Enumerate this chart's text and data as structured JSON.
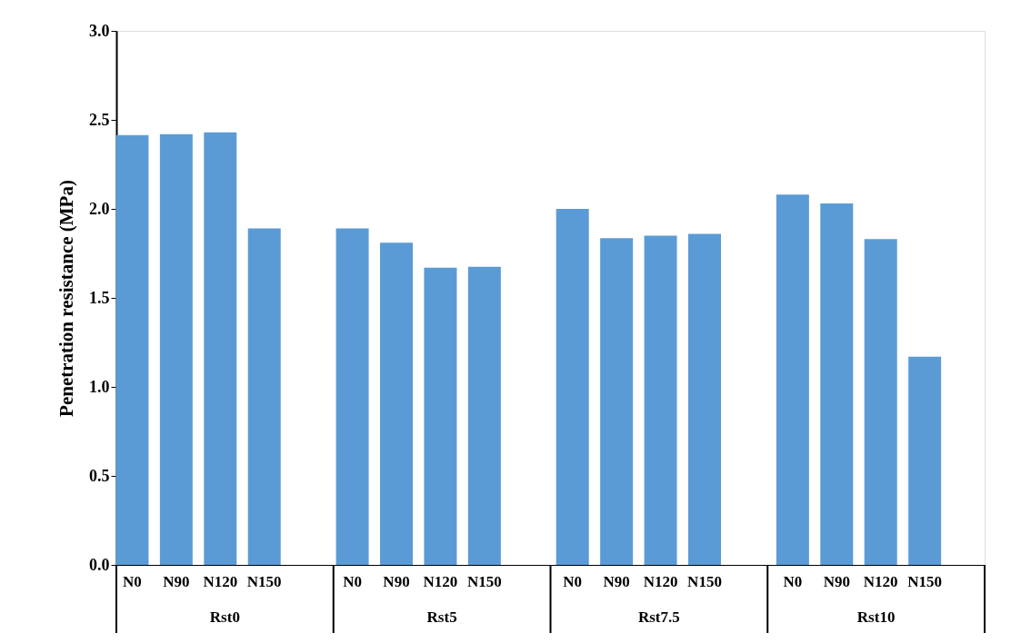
{
  "chart_data": {
    "type": "bar",
    "ylabel": "Penetration resistance (MPa)",
    "categories": [
      "N0",
      "N90",
      "N120",
      "N150",
      null,
      "N0",
      "N90",
      "N120",
      "N150",
      null,
      "N0",
      "N90",
      "N120",
      "N150",
      null,
      "N0",
      "N90",
      "N120",
      "N150",
      null
    ],
    "values": [
      2.415,
      2.42,
      2.43,
      1.89,
      null,
      1.89,
      1.81,
      1.67,
      1.675,
      null,
      2.0,
      1.835,
      1.85,
      1.86,
      null,
      2.08,
      2.03,
      1.83,
      1.17,
      null
    ],
    "color": "#5b9bd5",
    "ylim": [
      0,
      3
    ],
    "yticks": [
      {
        "value": 0,
        "label": "0.0"
      },
      0.5,
      {
        "value": 1,
        "label": "1.0"
      },
      1.5,
      {
        "value": 2,
        "label": "2.0"
      },
      2.5,
      {
        "value": 3,
        "label": "3.0"
      }
    ],
    "annotations": [
      "Rst0",
      "Rst5",
      "Rst7.5",
      "Rst10"
    ],
    "grid": false
  }
}
